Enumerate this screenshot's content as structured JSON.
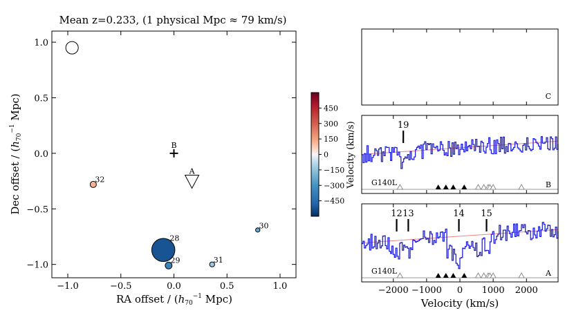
{
  "chart_data": [
    {
      "type": "scatter",
      "title": "Mean z=0.233, (1 physical Mpc ≈ 79 km/s)",
      "xlabel": "RA offset / (h70⁻¹ Mpc)",
      "ylabel": "Dec offset / (h70⁻¹ Mpc)",
      "xlim": [
        -1.15,
        1.15
      ],
      "ylim": [
        -1.12,
        1.1
      ],
      "xticks": [
        -1.0,
        -0.5,
        0.0,
        0.5,
        1.0
      ],
      "xtick_labels": [
        "−1.0",
        "−0.5",
        "0.0",
        "0.5",
        "1.0"
      ],
      "yticks": [
        -1.0,
        -0.5,
        0.0,
        0.5,
        1.0
      ],
      "ytick_labels": [
        "−1.0",
        "−0.5",
        "0.0",
        "0.5",
        "1.0"
      ],
      "galaxies": [
        {
          "label": "32",
          "ra": -0.76,
          "dec": -0.28,
          "velocity": 120,
          "size": 1.0
        },
        {
          "label": "28",
          "ra": -0.1,
          "dec": -0.87,
          "velocity": -520,
          "size": 2.4
        },
        {
          "label": "29",
          "ra": -0.05,
          "dec": -1.01,
          "velocity": -360,
          "size": 1.1
        },
        {
          "label": "31",
          "ra": 0.36,
          "dec": -1.0,
          "velocity": -130,
          "size": 0.8
        },
        {
          "label": "30",
          "ra": 0.79,
          "dec": -0.69,
          "velocity": -230,
          "size": 0.7
        }
      ],
      "reference_circle": {
        "ra": -0.96,
        "dec": 0.95,
        "size": 2.0
      },
      "sightlines": [
        {
          "label": "B",
          "ra": 0.0,
          "dec": 0.0,
          "marker": "plus"
        },
        {
          "label": "A",
          "ra": 0.17,
          "dec": -0.24,
          "marker": "triangle-down"
        }
      ],
      "colorbar": {
        "vmin": -600,
        "vmax": 600,
        "ticks": [
          450,
          300,
          150,
          0,
          -150,
          -300,
          -450
        ],
        "tick_labels": [
          "450",
          "300",
          "150",
          "0",
          "−150",
          "−300",
          "−450"
        ],
        "colormap": "RdBu_r"
      }
    },
    {
      "type": "line",
      "xlabel": "Velocity (km/s)",
      "ylabel": "Velocity (km/s)",
      "xlim": [
        -2950,
        2950
      ],
      "xticks": [
        -2000,
        -1000,
        0,
        1000,
        2000
      ],
      "xtick_labels": [
        "−2000",
        "−1000",
        "0",
        "1000",
        "2000"
      ],
      "panels": [
        {
          "sightline": "C",
          "grating": "",
          "components": []
        },
        {
          "sightline": "B",
          "grating": "G140L",
          "components": [
            {
              "label": "19",
              "velocity": -1700
            }
          ],
          "filled_markers": [
            -650,
            -420,
            -200,
            130
          ],
          "open_markers": [
            -1800,
            550,
            720,
            850,
            900,
            1000,
            1850
          ]
        },
        {
          "sightline": "A",
          "grating": "G140L",
          "components": [
            {
              "label": "12",
              "velocity": -1900
            },
            {
              "label": "13",
              "velocity": -1550
            },
            {
              "label": "14",
              "velocity": -30
            },
            {
              "label": "15",
              "velocity": 800
            }
          ],
          "filled_markers": [
            -650,
            -420,
            -200,
            130
          ],
          "open_markers": [
            -1800,
            550,
            720,
            850,
            900,
            1000,
            1850
          ]
        }
      ]
    }
  ]
}
